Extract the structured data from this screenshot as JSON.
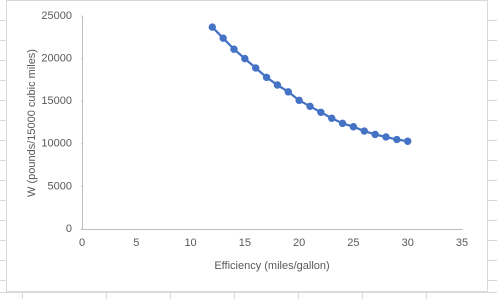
{
  "chart_data": {
    "type": "scatter",
    "x_label": "Efficiency (miles/gallon)",
    "y_label": "W (pounds/15000 cubic miles)",
    "series": [
      {
        "color": "#4472c4",
        "x": [
          12,
          13,
          14,
          15,
          16,
          17,
          18,
          19,
          20,
          21,
          22,
          23,
          24,
          25,
          26,
          27,
          28,
          29,
          30
        ],
        "values": [
          23700,
          22400,
          21100,
          20000,
          18900,
          17800,
          16900,
          16100,
          15100,
          14400,
          13700,
          13000,
          12400,
          12000,
          11500,
          11100,
          10800,
          10500,
          10300
        ]
      }
    ],
    "connect": true,
    "xlim": [
      0,
      35
    ],
    "xticks": [
      0,
      5,
      10,
      15,
      20,
      25,
      30,
      35
    ],
    "ylim": [
      0,
      25000
    ],
    "yticks": [
      0,
      5000,
      10000,
      15000,
      20000,
      25000
    ],
    "grid": false
  }
}
